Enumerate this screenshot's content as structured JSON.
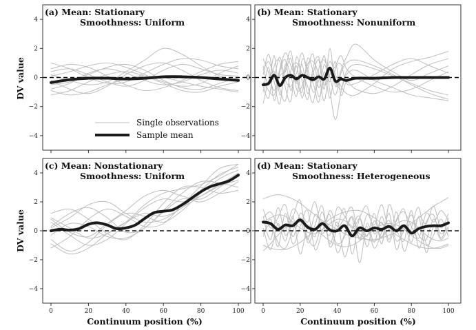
{
  "figure": {
    "ylabel": "DV value",
    "xlabel": "Continuum position  (%)",
    "legend": {
      "observations": "Single observations",
      "mean": "Sample mean"
    },
    "colors": {
      "observations": "#bdbdbd",
      "mean": "#1a1a1a",
      "zero_line": "#111111"
    }
  },
  "chart_data": [
    {
      "type": "line",
      "panel": "(a)",
      "title_line1": "(a)  Mean: Stationary",
      "title_line2": "Smoothness: Uniform",
      "xlim": [
        0,
        100
      ],
      "ylim": [
        -5,
        5
      ],
      "xticks": [
        0,
        20,
        40,
        60,
        80,
        100
      ],
      "yticks": [
        -4,
        -2,
        0,
        2,
        4
      ],
      "reference_line": {
        "y": 0,
        "style": "dashed"
      },
      "legend_visible": true,
      "mean": {
        "name": "Sample mean",
        "x": [
          0,
          10,
          20,
          30,
          40,
          50,
          60,
          70,
          80,
          90,
          100
        ],
        "y": [
          -0.35,
          -0.15,
          -0.05,
          -0.05,
          -0.1,
          -0.05,
          0.05,
          0.05,
          0.0,
          -0.1,
          -0.2
        ]
      },
      "observations": {
        "name": "Single observations",
        "x": [
          0,
          10,
          20,
          30,
          40,
          50,
          60,
          70,
          80,
          90,
          100
        ],
        "series": [
          [
            0.4,
            0.6,
            0.2,
            -0.3,
            -0.6,
            -0.2,
            0.5,
            0.9,
            0.6,
            0.2,
            0.1
          ],
          [
            -0.8,
            -0.4,
            0.3,
            0.6,
            0.3,
            -0.2,
            -0.5,
            -0.3,
            0.2,
            0.5,
            0.3
          ],
          [
            -0.2,
            -0.8,
            -1.1,
            -0.6,
            0.2,
            0.8,
            1.0,
            0.5,
            -0.2,
            -0.7,
            -0.9
          ],
          [
            1.0,
            0.6,
            0.0,
            -0.4,
            -0.3,
            0.3,
            0.9,
            1.3,
            1.2,
            0.8,
            0.6
          ],
          [
            -1.2,
            -0.9,
            -0.3,
            0.2,
            0.4,
            0.1,
            -0.4,
            -0.9,
            -1.0,
            -0.6,
            -0.3
          ],
          [
            0.2,
            -0.2,
            -0.5,
            -0.3,
            0.4,
            1.2,
            2.0,
            1.6,
            0.8,
            0.1,
            -0.3
          ],
          [
            -0.5,
            -0.3,
            0.2,
            0.7,
            0.9,
            0.5,
            -0.2,
            -0.7,
            -0.8,
            -0.4,
            0.0
          ],
          [
            0.6,
            0.9,
            0.7,
            0.1,
            -0.5,
            -0.9,
            -0.7,
            -0.2,
            0.4,
            0.9,
            1.1
          ],
          [
            -0.9,
            -1.2,
            -1.0,
            -0.5,
            -0.1,
            0.1,
            0.0,
            -0.3,
            -0.6,
            -0.8,
            -1.0
          ],
          [
            0.1,
            0.4,
            0.8,
            1.0,
            0.7,
            0.2,
            -0.3,
            -0.6,
            -0.4,
            0.3,
            0.8
          ]
        ]
      }
    },
    {
      "type": "line",
      "panel": "(b)",
      "title_line1": "(b)  Mean: Stationary",
      "title_line2": "Smoothness: Nonuniform",
      "xlim": [
        0,
        100
      ],
      "ylim": [
        -5,
        5
      ],
      "xticks": [
        0,
        20,
        40,
        60,
        80,
        100
      ],
      "yticks": [
        -4,
        -2,
        0,
        2,
        4
      ],
      "reference_line": {
        "y": 0,
        "style": "dashed"
      },
      "legend_visible": false,
      "mean": {
        "name": "Sample mean",
        "x": [
          0,
          3,
          6,
          9,
          12,
          15,
          18,
          21,
          24,
          27,
          30,
          33,
          36,
          39,
          42,
          45,
          50,
          60,
          70,
          80,
          90,
          100
        ],
        "y": [
          -0.5,
          -0.4,
          0.15,
          -0.55,
          0.0,
          0.15,
          -0.1,
          0.15,
          0.0,
          -0.15,
          0.05,
          -0.1,
          0.65,
          -0.25,
          -0.1,
          -0.2,
          -0.05,
          -0.05,
          0.0,
          0.0,
          0.0,
          0.0
        ]
      },
      "observations": {
        "name": "Single observations",
        "x": [
          0,
          3,
          6,
          9,
          12,
          15,
          18,
          21,
          24,
          27,
          30,
          33,
          36,
          39,
          42,
          45,
          50,
          60,
          70,
          80,
          90,
          100
        ],
        "series": [
          [
            0.8,
            -0.5,
            1.5,
            -1.2,
            0.6,
            1.8,
            -0.4,
            0.9,
            -1.1,
            0.3,
            1.2,
            -0.8,
            2.0,
            -0.6,
            0.5,
            1.4,
            2.3,
            1.2,
            0.4,
            -0.2,
            0.3,
            0.8
          ],
          [
            -1.0,
            0.7,
            -1.6,
            0.4,
            1.2,
            -0.9,
            0.8,
            -1.4,
            0.5,
            1.6,
            -0.7,
            0.9,
            -0.3,
            1.1,
            -1.2,
            -0.3,
            -0.8,
            -1.1,
            -0.6,
            0.2,
            0.9,
            1.3
          ],
          [
            0.2,
            1.6,
            -0.3,
            -1.8,
            0.9,
            0.1,
            -1.3,
            1.2,
            0.6,
            -1.0,
            -0.2,
            1.5,
            -0.9,
            -2.9,
            -1.0,
            0.4,
            0.9,
            0.6,
            0.1,
            -0.4,
            -0.9,
            -1.2
          ],
          [
            -0.6,
            -1.4,
            0.8,
            1.1,
            -0.7,
            -1.6,
            1.4,
            -0.2,
            -1.5,
            0.7,
            1.4,
            -0.5,
            0.2,
            0.8,
            1.5,
            0.6,
            0.0,
            -0.6,
            -1.0,
            -0.8,
            -0.2,
            0.4
          ],
          [
            1.3,
            0.3,
            -0.9,
            0.6,
            1.7,
            0.8,
            -0.2,
            -1.0,
            1.3,
            0.4,
            -1.3,
            -0.2,
            1.1,
            0.2,
            -0.6,
            -1.1,
            -1.2,
            -0.4,
            0.6,
            1.1,
            1.4,
            1.8
          ],
          [
            -1.8,
            -0.2,
            0.4,
            -0.8,
            -1.6,
            0.5,
            1.0,
            0.3,
            -0.6,
            -1.7,
            0.6,
            1.2,
            0.0,
            -1.2,
            0.3,
            1.0,
            1.2,
            0.8,
            0.2,
            -0.5,
            -1.1,
            -1.5
          ],
          [
            0.5,
            1.1,
            0.2,
            1.4,
            -0.2,
            -0.6,
            0.3,
            1.7,
            0.2,
            -0.4,
            -1.7,
            0.4,
            -1.4,
            0.6,
            0.9,
            -0.4,
            -0.4,
            0.2,
            0.9,
            1.3,
            0.8,
            0.3
          ],
          [
            -0.3,
            -0.9,
            -1.2,
            0.1,
            0.4,
            1.3,
            -0.8,
            -0.6,
            0.9,
            1.1,
            0.2,
            -1.6,
            0.7,
            -0.3,
            -0.8,
            0.2,
            0.5,
            -0.2,
            -0.7,
            -1.2,
            -1.4,
            -1.6
          ]
        ]
      }
    },
    {
      "type": "line",
      "panel": "(c)",
      "title_line1": "(c)  Mean: Nonstationary",
      "title_line2": "Smoothness: Uniform",
      "xlim": [
        0,
        100
      ],
      "ylim": [
        -5,
        5
      ],
      "xticks": [
        0,
        20,
        40,
        60,
        80,
        100
      ],
      "yticks": [
        -4,
        -2,
        0,
        2,
        4
      ],
      "reference_line": {
        "y": 0,
        "style": "dashed"
      },
      "legend_visible": false,
      "mean": {
        "name": "Sample mean",
        "x": [
          0,
          5,
          10,
          15,
          20,
          25,
          30,
          35,
          40,
          45,
          50,
          55,
          60,
          65,
          70,
          75,
          80,
          85,
          90,
          95,
          100
        ],
        "y": [
          0.0,
          0.1,
          0.05,
          0.15,
          0.45,
          0.55,
          0.4,
          0.15,
          0.2,
          0.4,
          0.85,
          1.25,
          1.35,
          1.45,
          1.8,
          2.25,
          2.7,
          3.05,
          3.25,
          3.45,
          3.85
        ]
      },
      "observations": {
        "name": "Single observations",
        "x": [
          0,
          10,
          20,
          30,
          40,
          50,
          60,
          70,
          80,
          90,
          100
        ],
        "series": [
          [
            0.9,
            0.2,
            -0.5,
            -0.2,
            0.6,
            1.8,
            2.6,
            2.9,
            3.2,
            3.8,
            4.6
          ],
          [
            -0.6,
            -1.4,
            -0.8,
            0.4,
            1.2,
            1.0,
            0.6,
            1.4,
            2.6,
            3.6,
            4.2
          ],
          [
            0.3,
            1.2,
            1.6,
            0.9,
            -0.1,
            0.2,
            1.4,
            2.6,
            3.4,
            3.3,
            3.0
          ],
          [
            -1.2,
            -0.4,
            0.8,
            1.5,
            1.0,
            0.3,
            0.5,
            1.8,
            3.1,
            4.3,
            4.6
          ],
          [
            0.6,
            -0.3,
            -1.0,
            -0.6,
            0.5,
            1.6,
            2.2,
            2.0,
            2.4,
            3.1,
            3.5
          ],
          [
            1.2,
            1.5,
            0.8,
            -0.2,
            -0.6,
            0.4,
            1.9,
            3.0,
            3.0,
            2.6,
            2.8
          ],
          [
            -0.9,
            -1.6,
            -1.2,
            -0.2,
            0.6,
            1.2,
            1.0,
            1.6,
            2.8,
            3.9,
            4.4
          ],
          [
            0.2,
            0.9,
            1.8,
            2.0,
            1.2,
            0.6,
            0.8,
            1.6,
            2.4,
            3.2,
            4.0
          ],
          [
            -0.3,
            0.5,
            0.3,
            -0.4,
            -0.5,
            0.2,
            1.3,
            2.2,
            2.0,
            2.6,
            3.4
          ],
          [
            0.8,
            -0.1,
            -0.4,
            0.5,
            1.4,
            2.4,
            2.8,
            2.4,
            2.2,
            3.0,
            3.9
          ]
        ]
      }
    },
    {
      "type": "line",
      "panel": "(d)",
      "title_line1": "(d)  Mean: Stationary",
      "title_line2": "Smoothness: Heterogeneous",
      "xlim": [
        0,
        100
      ],
      "ylim": [
        -5,
        5
      ],
      "xticks": [
        0,
        20,
        40,
        60,
        80,
        100
      ],
      "yticks": [
        -4,
        -2,
        0,
        2,
        4
      ],
      "reference_line": {
        "y": 0,
        "style": "dashed"
      },
      "legend_visible": false,
      "mean": {
        "name": "Sample mean",
        "x": [
          0,
          4,
          8,
          12,
          16,
          20,
          24,
          28,
          32,
          36,
          40,
          44,
          48,
          52,
          56,
          60,
          64,
          68,
          72,
          76,
          80,
          84,
          88,
          92,
          96,
          100
        ],
        "y": [
          0.6,
          0.5,
          0.1,
          0.4,
          0.35,
          0.75,
          0.25,
          0.1,
          0.5,
          0.05,
          0.0,
          0.35,
          -0.35,
          0.2,
          0.0,
          0.2,
          0.1,
          0.3,
          0.0,
          0.35,
          -0.15,
          0.15,
          0.3,
          0.35,
          0.35,
          0.55
        ]
      },
      "observations": {
        "name": "Single observations",
        "x": [
          0,
          4,
          8,
          12,
          16,
          20,
          24,
          28,
          32,
          36,
          40,
          44,
          48,
          52,
          56,
          60,
          64,
          68,
          72,
          76,
          80,
          84,
          88,
          92,
          96,
          100
        ],
        "series": [
          [
            2.2,
            2.4,
            2.5,
            2.4,
            2.2,
            1.9,
            1.5,
            1.1,
            0.7,
            0.4,
            0.1,
            -0.2,
            -0.4,
            -0.5,
            -0.6,
            -0.6,
            -0.5,
            -0.3,
            -0.1,
            0.2,
            0.5,
            0.9,
            1.3,
            1.7,
            2.0,
            2.3
          ],
          [
            -1.0,
            -1.2,
            -1.3,
            -1.3,
            -1.1,
            -0.8,
            -0.4,
            0.0,
            0.4,
            0.8,
            1.1,
            1.3,
            1.4,
            1.4,
            1.2,
            0.9,
            0.5,
            0.1,
            -0.3,
            -0.6,
            -0.9,
            -1.1,
            -1.2,
            -1.2,
            -1.1,
            -0.9
          ],
          [
            1.0,
            -0.6,
            1.6,
            -0.3,
            0.9,
            2.1,
            -0.8,
            0.4,
            1.7,
            -1.1,
            0.2,
            1.5,
            -1.6,
            0.8,
            -0.4,
            1.2,
            -0.9,
            1.8,
            0.1,
            -0.7,
            1.4,
            -1.2,
            0.6,
            1.1,
            -0.5,
            0.9
          ],
          [
            -0.4,
            0.8,
            -1.1,
            1.2,
            -0.9,
            0.3,
            1.4,
            -1.3,
            0.0,
            1.1,
            -1.5,
            -0.2,
            0.9,
            -2.2,
            0.5,
            -0.8,
            1.0,
            -0.6,
            1.3,
            -1.4,
            0.2,
            1.6,
            -0.9,
            -0.3,
            0.8,
            -0.4
          ],
          [
            0.6,
            0.9,
            1.1,
            1.0,
            0.6,
            0.2,
            -0.1,
            -0.2,
            0.1,
            0.5,
            0.8,
            0.7,
            0.3,
            -0.2,
            -0.6,
            -0.7,
            -0.4,
            0.1,
            0.5,
            0.7,
            0.6,
            0.2,
            -0.3,
            -0.6,
            -0.7,
            -0.5
          ],
          [
            1.5,
            0.2,
            0.9,
            1.8,
            -0.4,
            1.2,
            0.6,
            2.0,
            -0.2,
            1.4,
            0.3,
            0.9,
            1.6,
            -0.5,
            1.1,
            0.4,
            1.8,
            0.0,
            0.7,
            1.5,
            -0.3,
            1.0,
            0.5,
            1.7,
            0.2,
            1.2
          ],
          [
            -1.4,
            -0.9,
            -0.3,
            0.2,
            0.5,
            0.6,
            0.4,
            0.1,
            -0.3,
            -0.7,
            -1.0,
            -1.1,
            -1.0,
            -0.7,
            -0.3,
            0.1,
            0.4,
            0.5,
            0.4,
            0.1,
            -0.3,
            -0.7,
            -1.0,
            -1.2,
            -1.2,
            -1.0
          ],
          [
            0.2,
            -1.3,
            0.5,
            -0.7,
            1.0,
            -1.6,
            0.3,
            -0.4,
            1.3,
            -0.9,
            0.6,
            -1.8,
            0.1,
            1.0,
            -1.1,
            0.7,
            -0.5,
            1.2,
            -1.3,
            0.4,
            -0.8,
            0.9,
            -1.5,
            0.3,
            -0.6,
            0.2
          ],
          [
            0.9,
            1.3,
            0.4,
            0.0,
            1.5,
            0.8,
            -0.6,
            1.1,
            0.5,
            -0.3,
            1.6,
            1.0,
            0.2,
            0.9,
            1.7,
            -0.2,
            0.6,
            -0.8,
            0.8,
            1.3,
            0.3,
            -0.5,
            1.2,
            0.6,
            1.4,
            0.7
          ],
          [
            -0.2,
            0.4,
            -0.8,
            -1.2,
            0.0,
            0.9,
            -0.5,
            -1.0,
            0.6,
            0.2,
            -0.9,
            -0.4,
            1.0,
            -0.6,
            0.3,
            -1.2,
            -0.1,
            0.7,
            -0.7,
            0.0,
            1.1,
            -0.3,
            -0.6,
            0.8,
            -0.2,
            0.3
          ]
        ]
      }
    }
  ]
}
